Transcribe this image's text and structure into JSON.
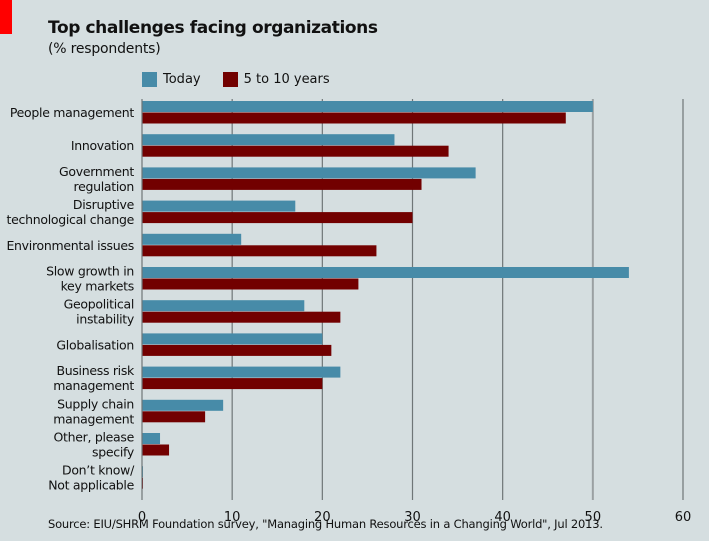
{
  "chart_data": {
    "type": "bar",
    "orientation": "horizontal",
    "title": "Top challenges facing organizations",
    "subtitle": "(% respondents)",
    "xlabel": "",
    "ylabel": "",
    "xlim": [
      0,
      60
    ],
    "xticks": [
      0,
      10,
      20,
      30,
      40,
      50,
      60
    ],
    "grid": true,
    "legend_position": "top",
    "categories": [
      [
        "People management"
      ],
      [
        "Innovation"
      ],
      [
        "Government",
        "regulation"
      ],
      [
        "Disruptive",
        "technological change"
      ],
      [
        "Environmental issues"
      ],
      [
        "Slow growth in",
        "key markets"
      ],
      [
        "Geopolitical",
        "instability"
      ],
      [
        "Globalisation"
      ],
      [
        "Business risk",
        "management"
      ],
      [
        "Supply chain",
        "management"
      ],
      [
        "Other, please",
        "specify"
      ],
      [
        "Don’t know/",
        "Not applicable"
      ]
    ],
    "series": [
      {
        "name": "Today",
        "color": "#478ba8",
        "values": [
          50,
          28,
          37,
          17,
          11,
          54,
          18,
          20,
          22,
          9,
          2,
          0
        ]
      },
      {
        "name": "5 to 10 years",
        "color": "#720000",
        "values": [
          47,
          34,
          31,
          30,
          26,
          24,
          22,
          21,
          20,
          7,
          3,
          0
        ]
      }
    ],
    "source": "Source: EIU/SHRM Foundation survey, \"Managing Human Resources in a Changing World\", Jul 2013."
  },
  "colors": {
    "background": "#d5dee0",
    "brand_mark": "#ff0000",
    "gridline": "#6f7677"
  }
}
